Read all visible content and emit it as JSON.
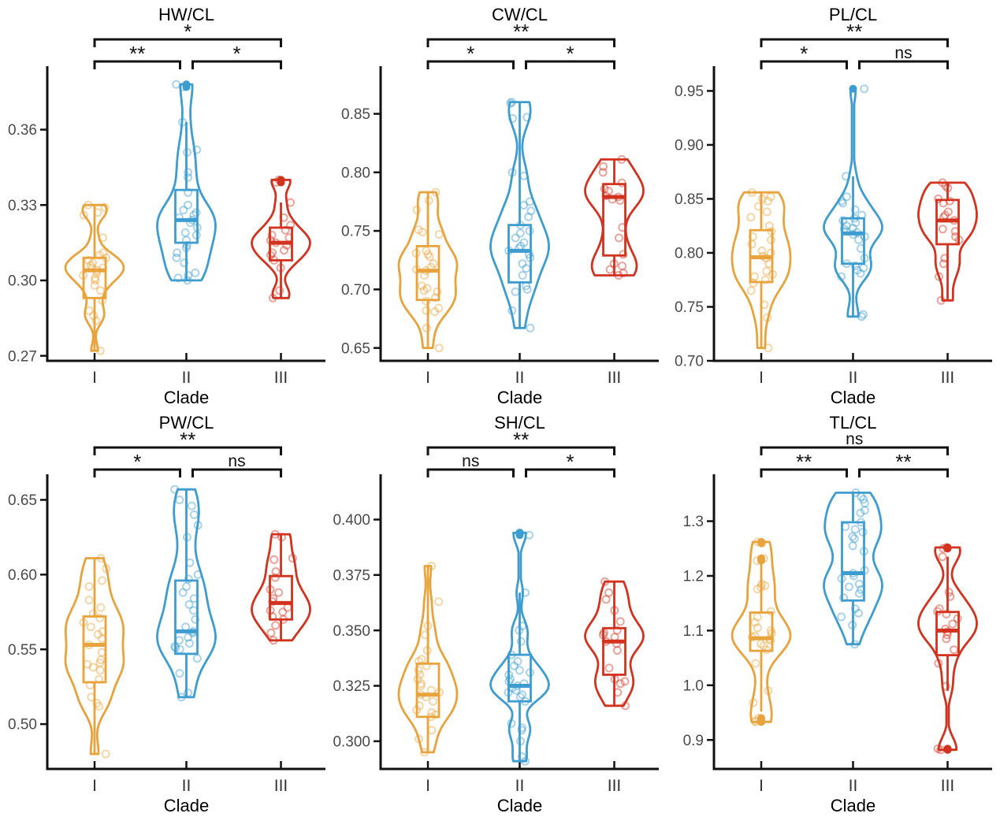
{
  "figure_name": "violin-box-jitter-morphometrics",
  "colors": {
    "clade_I": "#E8A33C",
    "clade_II": "#3D9DD0",
    "clade_III": "#D2321E",
    "axis": "#111111",
    "bracket": "#111111",
    "tick_label": "#4a4a4a",
    "title": "#000000"
  },
  "chart_data": [
    {
      "type": "violin",
      "title": "HW/CL",
      "xlabel": "Clade",
      "categories": [
        "I",
        "II",
        "III"
      ],
      "ylim": [
        0.268,
        0.384
      ],
      "yticks": [
        {
          "v": 0.27,
          "label": "0.27"
        },
        {
          "v": 0.3,
          "label": "0.30"
        },
        {
          "v": 0.33,
          "label": "0.33"
        },
        {
          "v": 0.36,
          "label": "0.36"
        }
      ],
      "significance": [
        {
          "pair": [
            0,
            2
          ],
          "row": 2,
          "label": "*"
        },
        {
          "pair": [
            0,
            1
          ],
          "row": 1,
          "label": "**"
        },
        {
          "pair": [
            1,
            2
          ],
          "row": 1,
          "label": "*"
        }
      ],
      "groups": [
        {
          "clade": "I",
          "color_key": "clade_I",
          "box": {
            "lo": 0.272,
            "q1": 0.293,
            "med": 0.304,
            "q3": 0.309,
            "hi": 0.33
          },
          "points": [
            0.272,
            0.284,
            0.286,
            0.288,
            0.292,
            0.296,
            0.298,
            0.3,
            0.301,
            0.302,
            0.303,
            0.304,
            0.305,
            0.305,
            0.306,
            0.307,
            0.308,
            0.309,
            0.31,
            0.311,
            0.317,
            0.326,
            0.327,
            0.329,
            0.33
          ]
        },
        {
          "clade": "II",
          "color_key": "clade_II",
          "box": {
            "lo": 0.3,
            "q1": 0.315,
            "med": 0.324,
            "q3": 0.336,
            "hi": 0.363
          },
          "points": [
            0.378,
            0.377,
            0.363,
            0.352,
            0.351,
            0.343,
            0.341,
            0.335,
            0.33,
            0.328,
            0.327,
            0.326,
            0.325,
            0.324,
            0.323,
            0.321,
            0.319,
            0.318,
            0.316,
            0.314,
            0.313,
            0.311,
            0.309,
            0.307,
            0.303,
            0.302,
            0.301,
            0.3
          ]
        },
        {
          "clade": "III",
          "color_key": "clade_III",
          "box": {
            "lo": 0.293,
            "q1": 0.308,
            "med": 0.315,
            "q3": 0.321,
            "hi": 0.331
          },
          "points": [
            0.34,
            0.339,
            0.331,
            0.325,
            0.322,
            0.32,
            0.318,
            0.317,
            0.316,
            0.315,
            0.314,
            0.312,
            0.311,
            0.31,
            0.308,
            0.305,
            0.296,
            0.293
          ]
        }
      ]
    },
    {
      "type": "violin",
      "title": "CW/CL",
      "xlabel": "Clade",
      "categories": [
        "I",
        "II",
        "III"
      ],
      "ylim": [
        0.639,
        0.888
      ],
      "yticks": [
        {
          "v": 0.65,
          "label": "0.65"
        },
        {
          "v": 0.7,
          "label": "0.70"
        },
        {
          "v": 0.75,
          "label": "0.75"
        },
        {
          "v": 0.8,
          "label": "0.80"
        },
        {
          "v": 0.85,
          "label": "0.85"
        }
      ],
      "significance": [
        {
          "pair": [
            0,
            2
          ],
          "row": 2,
          "label": "**"
        },
        {
          "pair": [
            0,
            1
          ],
          "row": 1,
          "label": "*"
        },
        {
          "pair": [
            1,
            2
          ],
          "row": 1,
          "label": "*"
        }
      ],
      "groups": [
        {
          "clade": "I",
          "color_key": "clade_I",
          "box": {
            "lo": 0.65,
            "q1": 0.691,
            "med": 0.716,
            "q3": 0.737,
            "hi": 0.783
          },
          "points": [
            0.783,
            0.776,
            0.768,
            0.751,
            0.749,
            0.747,
            0.733,
            0.731,
            0.73,
            0.728,
            0.722,
            0.719,
            0.717,
            0.716,
            0.712,
            0.703,
            0.701,
            0.699,
            0.698,
            0.693,
            0.69,
            0.684,
            0.682,
            0.681,
            0.667,
            0.65
          ]
        },
        {
          "clade": "II",
          "color_key": "clade_II",
          "box": {
            "lo": 0.667,
            "q1": 0.706,
            "med": 0.733,
            "q3": 0.755,
            "hi": 0.86
          },
          "points": [
            0.86,
            0.859,
            0.847,
            0.846,
            0.8,
            0.797,
            0.775,
            0.772,
            0.767,
            0.762,
            0.755,
            0.75,
            0.748,
            0.744,
            0.74,
            0.737,
            0.735,
            0.733,
            0.73,
            0.727,
            0.722,
            0.718,
            0.712,
            0.703,
            0.7,
            0.698,
            0.682,
            0.667
          ]
        },
        {
          "clade": "III",
          "color_key": "clade_III",
          "box": {
            "lo": 0.712,
            "q1": 0.729,
            "med": 0.779,
            "q3": 0.79,
            "hi": 0.811
          },
          "points": [
            0.811,
            0.805,
            0.8,
            0.791,
            0.786,
            0.784,
            0.78,
            0.779,
            0.777,
            0.776,
            0.753,
            0.744,
            0.73,
            0.722,
            0.72,
            0.717,
            0.714,
            0.712
          ]
        }
      ]
    },
    {
      "type": "violin",
      "title": "PL/CL",
      "xlabel": "Clade",
      "categories": [
        "I",
        "II",
        "III"
      ],
      "ylim": [
        0.7,
        0.97
      ],
      "yticks": [
        {
          "v": 0.7,
          "label": "0.70"
        },
        {
          "v": 0.75,
          "label": "0.75"
        },
        {
          "v": 0.8,
          "label": "0.80"
        },
        {
          "v": 0.85,
          "label": "0.85"
        },
        {
          "v": 0.9,
          "label": "0.90"
        },
        {
          "v": 0.95,
          "label": "0.95"
        }
      ],
      "significance": [
        {
          "pair": [
            0,
            2
          ],
          "row": 2,
          "label": "**"
        },
        {
          "pair": [
            0,
            1
          ],
          "row": 1,
          "label": "*"
        },
        {
          "pair": [
            1,
            2
          ],
          "row": 1,
          "label": "ns"
        }
      ],
      "groups": [
        {
          "clade": "I",
          "color_key": "clade_I",
          "box": {
            "lo": 0.712,
            "q1": 0.773,
            "med": 0.796,
            "q3": 0.821,
            "hi": 0.856
          },
          "points": [
            0.856,
            0.852,
            0.85,
            0.848,
            0.843,
            0.838,
            0.833,
            0.825,
            0.82,
            0.815,
            0.812,
            0.808,
            0.802,
            0.8,
            0.797,
            0.795,
            0.79,
            0.783,
            0.78,
            0.778,
            0.775,
            0.772,
            0.765,
            0.752,
            0.74,
            0.712
          ]
        },
        {
          "clade": "II",
          "color_key": "clade_II",
          "box": {
            "lo": 0.741,
            "q1": 0.79,
            "med": 0.818,
            "q3": 0.832,
            "hi": 0.871
          },
          "points": [
            0.952,
            0.871,
            0.852,
            0.848,
            0.846,
            0.84,
            0.835,
            0.832,
            0.83,
            0.828,
            0.825,
            0.823,
            0.822,
            0.82,
            0.819,
            0.817,
            0.815,
            0.812,
            0.804,
            0.795,
            0.79,
            0.788,
            0.786,
            0.784,
            0.781,
            0.778,
            0.743,
            0.741
          ]
        },
        {
          "clade": "III",
          "color_key": "clade_III",
          "box": {
            "lo": 0.756,
            "q1": 0.808,
            "med": 0.83,
            "q3": 0.849,
            "hi": 0.865
          },
          "points": [
            0.865,
            0.862,
            0.86,
            0.85,
            0.848,
            0.846,
            0.838,
            0.835,
            0.833,
            0.83,
            0.822,
            0.82,
            0.815,
            0.812,
            0.795,
            0.79,
            0.778,
            0.756
          ]
        }
      ]
    },
    {
      "type": "violin",
      "title": "PW/CL",
      "xlabel": "Clade",
      "categories": [
        "I",
        "II",
        "III"
      ],
      "ylim": [
        0.47,
        0.665
      ],
      "yticks": [
        {
          "v": 0.5,
          "label": "0.50"
        },
        {
          "v": 0.55,
          "label": "0.55"
        },
        {
          "v": 0.6,
          "label": "0.60"
        },
        {
          "v": 0.65,
          "label": "0.65"
        }
      ],
      "significance": [
        {
          "pair": [
            0,
            2
          ],
          "row": 2,
          "label": "**"
        },
        {
          "pair": [
            0,
            1
          ],
          "row": 1,
          "label": "*"
        },
        {
          "pair": [
            1,
            2
          ],
          "row": 1,
          "label": "ns"
        }
      ],
      "groups": [
        {
          "clade": "I",
          "color_key": "clade_I",
          "box": {
            "lo": 0.48,
            "q1": 0.528,
            "med": 0.553,
            "q3": 0.572,
            "hi": 0.611
          },
          "points": [
            0.611,
            0.604,
            0.596,
            0.592,
            0.583,
            0.578,
            0.574,
            0.571,
            0.568,
            0.565,
            0.562,
            0.56,
            0.557,
            0.553,
            0.548,
            0.543,
            0.541,
            0.54,
            0.538,
            0.536,
            0.53,
            0.526,
            0.518,
            0.514,
            0.512,
            0.48
          ]
        },
        {
          "clade": "II",
          "color_key": "clade_II",
          "box": {
            "lo": 0.518,
            "q1": 0.547,
            "med": 0.562,
            "q3": 0.596,
            "hi": 0.657
          },
          "points": [
            0.657,
            0.65,
            0.646,
            0.64,
            0.633,
            0.625,
            0.608,
            0.6,
            0.597,
            0.592,
            0.588,
            0.584,
            0.58,
            0.576,
            0.57,
            0.565,
            0.562,
            0.561,
            0.558,
            0.556,
            0.554,
            0.552,
            0.551,
            0.55,
            0.544,
            0.534,
            0.521,
            0.518
          ]
        },
        {
          "clade": "III",
          "color_key": "clade_III",
          "box": {
            "lo": 0.556,
            "q1": 0.57,
            "med": 0.581,
            "q3": 0.599,
            "hi": 0.627
          },
          "points": [
            0.627,
            0.625,
            0.611,
            0.61,
            0.602,
            0.598,
            0.59,
            0.588,
            0.584,
            0.582,
            0.578,
            0.576,
            0.575,
            0.572,
            0.57,
            0.566,
            0.561,
            0.556
          ]
        }
      ]
    },
    {
      "type": "violin",
      "title": "SH/CL",
      "xlabel": "Clade",
      "categories": [
        "I",
        "II",
        "III"
      ],
      "ylim": [
        0.2875,
        0.419
      ],
      "yticks": [
        {
          "v": 0.3,
          "label": "0.300"
        },
        {
          "v": 0.325,
          "label": "0.325"
        },
        {
          "v": 0.35,
          "label": "0.350"
        },
        {
          "v": 0.375,
          "label": "0.375"
        },
        {
          "v": 0.4,
          "label": "0.400"
        }
      ],
      "significance": [
        {
          "pair": [
            0,
            2
          ],
          "row": 2,
          "label": "**"
        },
        {
          "pair": [
            0,
            1
          ],
          "row": 1,
          "label": "ns"
        },
        {
          "pair": [
            1,
            2
          ],
          "row": 1,
          "label": "*"
        }
      ],
      "groups": [
        {
          "clade": "I",
          "color_key": "clade_I",
          "box": {
            "lo": 0.295,
            "q1": 0.311,
            "med": 0.321,
            "q3": 0.335,
            "hi": 0.379
          },
          "points": [
            0.379,
            0.363,
            0.352,
            0.348,
            0.341,
            0.337,
            0.336,
            0.334,
            0.332,
            0.33,
            0.328,
            0.326,
            0.325,
            0.323,
            0.322,
            0.321,
            0.32,
            0.318,
            0.316,
            0.314,
            0.313,
            0.312,
            0.311,
            0.305,
            0.301,
            0.295
          ]
        },
        {
          "clade": "II",
          "color_key": "clade_II",
          "box": {
            "lo": 0.291,
            "q1": 0.318,
            "med": 0.325,
            "q3": 0.339,
            "hi": 0.367
          },
          "points": [
            0.394,
            0.393,
            0.367,
            0.352,
            0.35,
            0.345,
            0.339,
            0.336,
            0.334,
            0.332,
            0.331,
            0.33,
            0.328,
            0.327,
            0.326,
            0.325,
            0.324,
            0.323,
            0.322,
            0.321,
            0.32,
            0.318,
            0.308,
            0.306,
            0.305,
            0.3,
            0.293,
            0.291
          ]
        },
        {
          "clade": "III",
          "color_key": "clade_III",
          "box": {
            "lo": 0.316,
            "q1": 0.33,
            "med": 0.345,
            "q3": 0.351,
            "hi": 0.372
          },
          "points": [
            0.372,
            0.367,
            0.364,
            0.359,
            0.354,
            0.35,
            0.349,
            0.348,
            0.347,
            0.345,
            0.344,
            0.341,
            0.333,
            0.328,
            0.327,
            0.326,
            0.322,
            0.316
          ]
        }
      ]
    },
    {
      "type": "violin",
      "title": "TL/CL",
      "xlabel": "Clade",
      "categories": [
        "I",
        "II",
        "III"
      ],
      "ylim": [
        0.847,
        1.38
      ],
      "yticks": [
        {
          "v": 0.9,
          "label": "0.9"
        },
        {
          "v": 1.0,
          "label": "1.0"
        },
        {
          "v": 1.1,
          "label": "1.1"
        },
        {
          "v": 1.2,
          "label": "1.2"
        },
        {
          "v": 1.3,
          "label": "1.3"
        }
      ],
      "significance": [
        {
          "pair": [
            0,
            2
          ],
          "row": 2,
          "label": "ns"
        },
        {
          "pair": [
            0,
            1
          ],
          "row": 1,
          "label": "**"
        },
        {
          "pair": [
            1,
            2
          ],
          "row": 1,
          "label": "**"
        }
      ],
      "groups": [
        {
          "clade": "I",
          "color_key": "clade_I",
          "box": {
            "lo": 0.952,
            "q1": 1.063,
            "med": 1.086,
            "q3": 1.133,
            "hi": 1.225
          },
          "points": [
            1.262,
            1.26,
            1.232,
            1.228,
            1.185,
            1.182,
            1.179,
            1.176,
            1.135,
            1.125,
            1.115,
            1.105,
            1.1,
            1.095,
            1.09,
            1.088,
            1.085,
            1.082,
            1.076,
            1.072,
            1.065,
            1.04,
            0.99,
            0.968,
            0.94,
            0.935,
            0.933
          ]
        },
        {
          "clade": "II",
          "color_key": "clade_II",
          "box": {
            "lo": 1.075,
            "q1": 1.155,
            "med": 1.205,
            "q3": 1.298,
            "hi": 1.352
          },
          "points": [
            1.352,
            1.345,
            1.34,
            1.333,
            1.32,
            1.315,
            1.298,
            1.29,
            1.285,
            1.28,
            1.272,
            1.268,
            1.255,
            1.245,
            1.21,
            1.205,
            1.2,
            1.195,
            1.185,
            1.18,
            1.175,
            1.168,
            1.16,
            1.14,
            1.132,
            1.125,
            1.11,
            1.075
          ]
        },
        {
          "clade": "III",
          "color_key": "clade_III",
          "box": {
            "lo": 0.99,
            "q1": 1.055,
            "med": 1.1,
            "q3": 1.134,
            "hi": 1.235
          },
          "points": [
            1.252,
            1.25,
            1.235,
            1.17,
            1.162,
            1.14,
            1.135,
            1.13,
            1.122,
            1.112,
            1.103,
            1.098,
            1.092,
            1.085,
            1.065,
            1.04,
            0.998,
            0.884,
            0.882
          ]
        }
      ]
    }
  ]
}
